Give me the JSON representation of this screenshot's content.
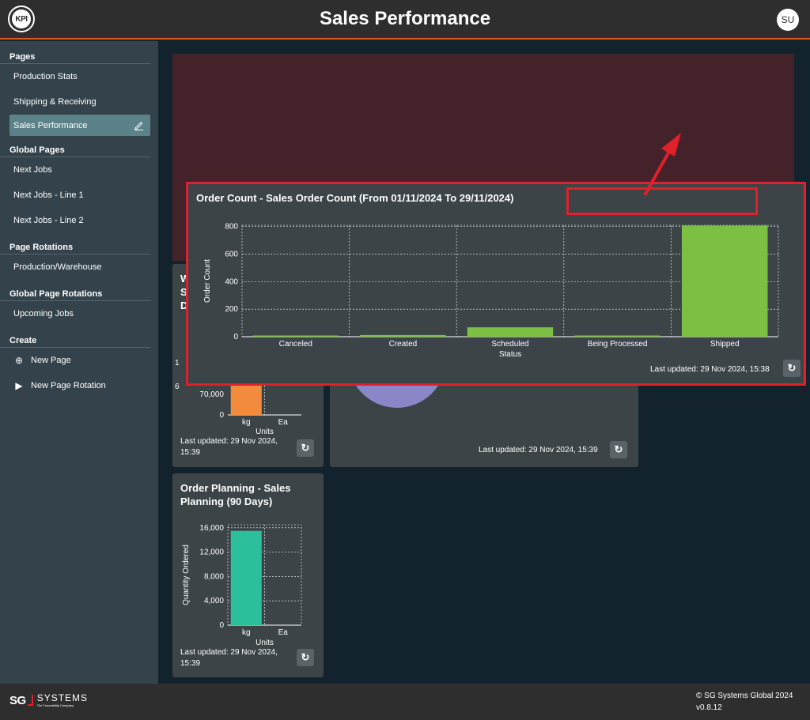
{
  "header": {
    "logo_text": "KPI",
    "title": "Sales Performance",
    "avatar_initials": "SU"
  },
  "sidebar": {
    "sections": [
      {
        "title": "Pages",
        "items": [
          "Production Stats",
          "Shipping & Receiving",
          "Sales Performance"
        ]
      },
      {
        "title": "Global Pages",
        "items": [
          "Next Jobs",
          "Next Jobs - Line 1",
          "Next Jobs - Line 2"
        ]
      },
      {
        "title": "Page Rotations",
        "items": [
          "Production/Warehouse"
        ]
      },
      {
        "title": "Global Page Rotations",
        "items": [
          "Upcoming Jobs"
        ]
      },
      {
        "title": "Create",
        "items": [
          "New Page",
          "New Page Rotation"
        ]
      }
    ],
    "active_item": "Sales Performance",
    "collapse_glyph": "›"
  },
  "cards": {
    "card_w_title": "W\nS\nD",
    "card_w_chart": {
      "ticks_visible": [
        "70,000",
        "0"
      ],
      "categories": [
        "kg",
        "Ea"
      ],
      "xlabel": "Units",
      "values": [
        120000,
        0
      ],
      "bar_color": "#f28c3c",
      "clipped_labels": [
        "1",
        "6"
      ]
    },
    "card_w_updated": "Last updated: 29 Nov 2024, 15:39",
    "pie_card_updated": "Last updated: 29 Nov 2024, 15:39",
    "pie_color": "#8b86c8",
    "planning": {
      "title": "Order Planning - Sales Planning (90 Days)",
      "updated": "Last updated: 29 Nov 2024, 15:39"
    }
  },
  "popup": {
    "title": "Order Count - Sales Order Count (From 01/11/2024 To 29/11/2024)",
    "updated": "Last updated: 29 Nov 2024, 15:38",
    "refresh_glyph": "↻"
  },
  "footer": {
    "logo_mark": "SG",
    "logo_name": "SYSTEMS",
    "logo_tagline": "The Traceability Company",
    "copyright": "© SG Systems Global 2024",
    "version": "v0.8.12"
  },
  "colors": {
    "accent": "#e25a1c",
    "annotation_red": "#e0202a",
    "bar_green": "#7bc043",
    "bar_teal": "#2bbf9b"
  },
  "chart_data": [
    {
      "type": "bar",
      "title": "Order Count - Sales Order Count (From 01/11/2024 To 29/11/2024)",
      "categories": [
        "Canceled",
        "Created",
        "Scheduled",
        "Being Processed",
        "Shipped"
      ],
      "values": [
        2,
        12,
        68,
        3,
        808
      ],
      "xlabel": "Status",
      "ylabel": "Order Count",
      "yticks": [
        0,
        200,
        400,
        600,
        800
      ],
      "ylim": [
        0,
        810
      ],
      "grid": true,
      "color": "#7bc043"
    },
    {
      "type": "bar",
      "title": "Order Planning - Sales Planning (90 Days)",
      "categories": [
        "kg",
        "Ea"
      ],
      "values": [
        15500,
        0
      ],
      "xlabel": "Units",
      "ylabel": "Quantity Ordered",
      "yticks": [
        0,
        4000,
        8000,
        12000,
        16000
      ],
      "ytick_labels": [
        "0",
        "4,000",
        "8,000",
        "12,000",
        "16,000"
      ],
      "ylim": [
        0,
        16500
      ],
      "grid": true,
      "color": "#2bbf9b"
    }
  ]
}
